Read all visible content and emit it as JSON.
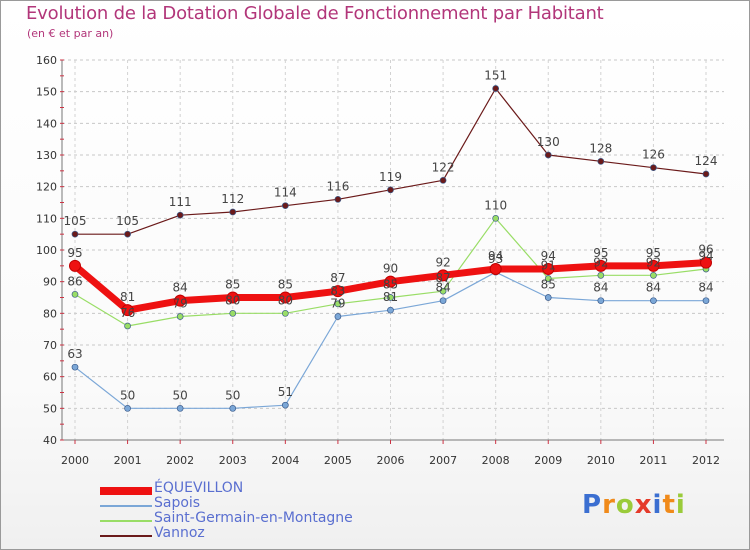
{
  "chart_data": {
    "type": "line",
    "title": "Evolution de la Dotation Globale de Fonctionnement par Habitant",
    "subtitle": "(en € et par an)",
    "xlabel": "",
    "ylabel": "",
    "ylim": [
      40,
      160
    ],
    "yticks": [
      "40",
      "50",
      "60",
      "70",
      "80",
      "90",
      "100",
      "110",
      "120",
      "130",
      "140",
      "150",
      "160"
    ],
    "categories": [
      "2000",
      "2001",
      "2002",
      "2003",
      "2004",
      "2005",
      "2006",
      "2007",
      "2008",
      "2009",
      "2010",
      "2011",
      "2012"
    ],
    "grid": "horizontal dashed",
    "legend_position": "bottom-left",
    "series": [
      {
        "name": "Vannoz",
        "color": "#6b1a1a",
        "width": 1.2,
        "values": [
          105,
          105,
          111,
          112,
          114,
          116,
          119,
          122,
          151,
          130,
          128,
          126,
          124
        ],
        "labels": [
          "105",
          "105",
          "111",
          "112",
          "114",
          "116",
          "119",
          "122",
          "151",
          "130",
          "128",
          "126",
          "124"
        ]
      },
      {
        "name": "Saint-Germain-en-Montagne",
        "color": "#99dd66",
        "width": 1.2,
        "values": [
          86,
          76,
          79,
          80,
          80,
          83,
          85,
          87,
          110,
          91,
          92,
          92,
          94
        ],
        "labels": [
          "86",
          "76",
          "79",
          "80",
          "80",
          "83",
          "85",
          "87",
          "110",
          "91",
          "92",
          "92",
          "94"
        ]
      },
      {
        "name": "Sapois",
        "color": "#7ba7d7",
        "width": 1.2,
        "values": [
          63,
          50,
          50,
          50,
          51,
          79,
          81,
          84,
          93,
          85,
          84,
          84,
          84
        ],
        "labels": [
          "63",
          "50",
          "50",
          "50",
          "51",
          "79",
          "81",
          "84",
          "93",
          "85",
          "84",
          "84",
          "84"
        ]
      },
      {
        "name": "ÉQUEVILLON",
        "color": "#ee1111",
        "width": 7,
        "values": [
          95,
          81,
          84,
          85,
          85,
          87,
          90,
          92,
          94,
          94,
          95,
          95,
          96
        ],
        "labels": [
          "95",
          "81",
          "84",
          "85",
          "85",
          "87",
          "90",
          "92",
          "94",
          "94",
          "95",
          "95",
          "96"
        ]
      }
    ]
  },
  "legend": [
    {
      "name": "ÉQUEVILLON",
      "color": "#ee1111",
      "thickness": "thick"
    },
    {
      "name": "Sapois",
      "color": "#7ba7d7",
      "thickness": "thin"
    },
    {
      "name": "Saint-Germain-en-Montagne",
      "color": "#99dd66",
      "thickness": "thin"
    },
    {
      "name": "Vannoz",
      "color": "#6b1a1a",
      "thickness": "thin"
    }
  ],
  "logo": {
    "text": "Proxiti",
    "letters": [
      {
        "ch": "P",
        "color": "#3b6fd1"
      },
      {
        "ch": "r",
        "color": "#f08a1a"
      },
      {
        "ch": "o",
        "color": "#9acb3a"
      },
      {
        "ch": "x",
        "color": "#e53a2a"
      },
      {
        "ch": "i",
        "color": "#3b6fd1"
      },
      {
        "ch": "t",
        "color": "#f08a1a"
      },
      {
        "ch": "i",
        "color": "#9acb3a"
      }
    ]
  }
}
